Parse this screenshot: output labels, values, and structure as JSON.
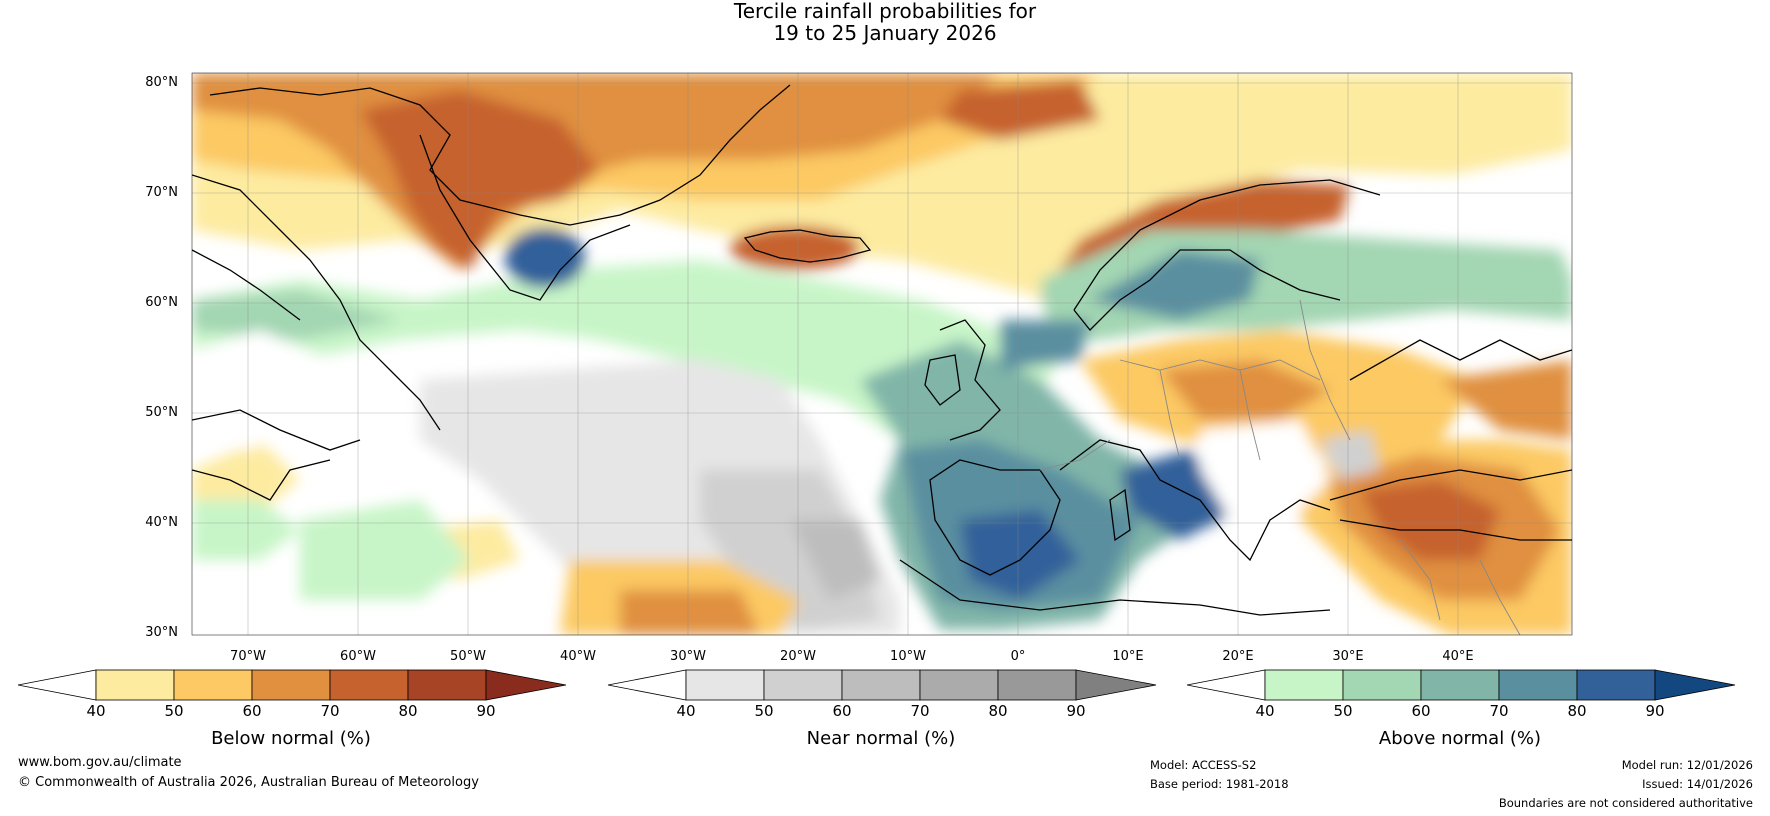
{
  "title": {
    "line1": "Tercile rainfall probabilities for",
    "line2": "19 to 25 January 2026"
  },
  "map": {
    "lat_labels": [
      "80°N",
      "70°N",
      "60°N",
      "50°N",
      "40°N",
      "30°N"
    ],
    "lon_labels": [
      "70°W",
      "60°W",
      "50°W",
      "40°W",
      "30°W",
      "20°W",
      "10°W",
      "0°",
      "10°E",
      "20°E",
      "30°E",
      "40°E"
    ]
  },
  "colorbars": [
    {
      "name": "Below normal (%)",
      "ticks": [
        "40",
        "50",
        "60",
        "70",
        "80",
        "90"
      ],
      "colors": [
        "#ffffff",
        "#fdeba0",
        "#fcc964",
        "#e0903f",
        "#c6622e",
        "#a84426",
        "#8a2c1d"
      ]
    },
    {
      "name": "Near normal (%)",
      "ticks": [
        "40",
        "50",
        "60",
        "70",
        "80",
        "90"
      ],
      "colors": [
        "#ffffff",
        "#e6e6e6",
        "#d0d0d0",
        "#bdbdbd",
        "#ababab",
        "#999999",
        "#808080"
      ]
    },
    {
      "name": "Above normal (%)",
      "ticks": [
        "40",
        "50",
        "60",
        "70",
        "80",
        "90"
      ],
      "colors": [
        "#ffffff",
        "#c8f5c8",
        "#a3d6b2",
        "#80b5a8",
        "#5a8fa0",
        "#32619a",
        "#13477f"
      ]
    }
  ],
  "footer": {
    "website": "www.bom.gov.au/climate",
    "copyright": "© Commonwealth of Australia 2026, Australian Bureau of Meteorology",
    "model": "Model: ACCESS-S2",
    "base_period": "Base period: 1981-2018",
    "model_run": "Model run: 12/01/2026",
    "issued": "Issued: 14/01/2026",
    "disclaimer": "Boundaries are not considered authoritative"
  }
}
